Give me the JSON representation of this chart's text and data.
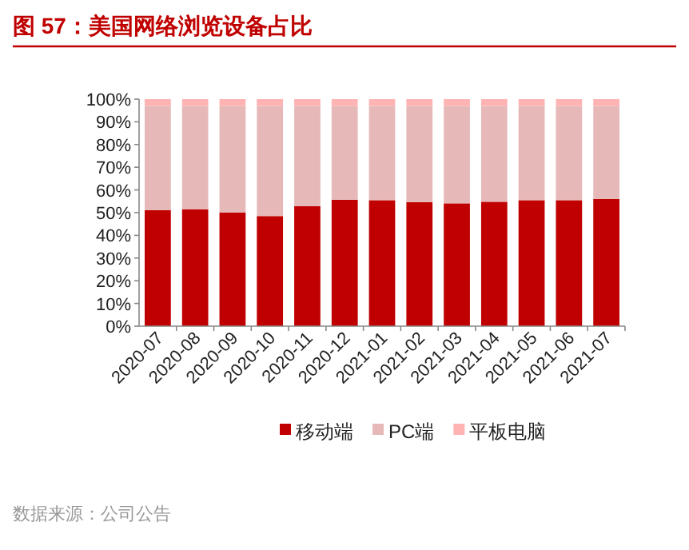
{
  "chart_data": {
    "type": "bar",
    "stacked": true,
    "title": "图 57：美国网络浏览设备占比",
    "categories": [
      "2020-07",
      "2020-08",
      "2020-09",
      "2020-10",
      "2020-11",
      "2020-12",
      "2021-01",
      "2021-02",
      "2021-03",
      "2021-04",
      "2021-05",
      "2021-06",
      "2021-07"
    ],
    "series": [
      {
        "name": "移动端",
        "color": "#c00000",
        "values": [
          51.1,
          51.5,
          50.1,
          48.5,
          52.9,
          55.7,
          55.5,
          54.6,
          54.1,
          54.8,
          55.5,
          55.5,
          56.0
        ]
      },
      {
        "name": "PC端",
        "color": "#e6b9b8",
        "values": [
          45.9,
          45.5,
          46.9,
          48.5,
          44.1,
          41.3,
          41.5,
          42.4,
          42.9,
          42.2,
          41.5,
          41.5,
          41.0
        ]
      },
      {
        "name": "平板电脑",
        "color": "#ffb3b3",
        "values": [
          3,
          3,
          3,
          3,
          3,
          3,
          3,
          3,
          3,
          3,
          3,
          3,
          3
        ]
      }
    ],
    "ylim": [
      0,
      100
    ],
    "yticks": [
      {
        "value": 0,
        "label": "0%"
      },
      {
        "value": 10,
        "label": "10%"
      },
      {
        "value": 20,
        "label": "20%"
      },
      {
        "value": 30,
        "label": "30%"
      },
      {
        "value": 40,
        "label": "40%"
      },
      {
        "value": 50,
        "label": "50%"
      },
      {
        "value": 60,
        "label": "60%"
      },
      {
        "value": 70,
        "label": "70%"
      },
      {
        "value": 80,
        "label": "80%"
      },
      {
        "value": 90,
        "label": "90%"
      },
      {
        "value": 100,
        "label": "100%"
      }
    ],
    "legend": "bottom",
    "annotations": [
      "数据来源：公司公告"
    ]
  }
}
